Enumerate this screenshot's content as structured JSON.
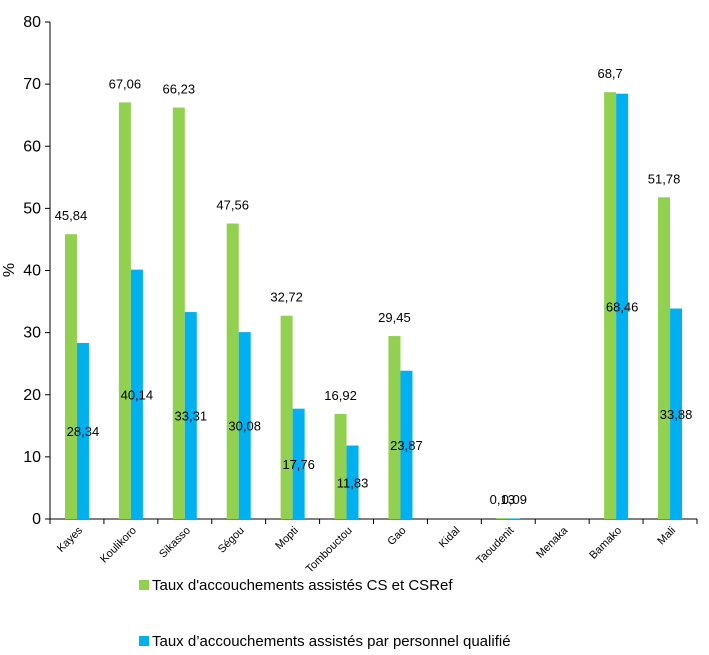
{
  "chart_data": {
    "type": "bar",
    "ylabel": "%",
    "ylim": [
      0,
      80
    ],
    "yticks": [
      0,
      10,
      20,
      30,
      40,
      50,
      60,
      70,
      80
    ],
    "grid": false,
    "legend_position": "bottom",
    "categories": [
      "Kayes",
      "Koulikoro",
      "Sikasso",
      "Ségou",
      "Mopti",
      "Tombouctou",
      "Gao",
      "Kidal",
      "Taoudenit",
      "Menaka",
      "Bamako",
      "Mali"
    ],
    "series": [
      {
        "name": "Taux d'accouchements assistés CS et CSRef",
        "color": "#92D050",
        "values": [
          45.84,
          67.06,
          66.23,
          47.56,
          32.72,
          16.92,
          29.45,
          null,
          0.13,
          null,
          68.7,
          51.78
        ],
        "labels": [
          "45,84",
          "67,06",
          "66,23",
          "47,56",
          "32,72",
          "16,92",
          "29,45",
          "",
          "0,13",
          "",
          "68,7",
          "51,78"
        ]
      },
      {
        "name": "Taux d’accouchements assistés par personnel qualifié",
        "color": "#00B0F0",
        "values": [
          28.34,
          40.14,
          33.31,
          30.08,
          17.76,
          11.83,
          23.87,
          null,
          0.09,
          null,
          68.46,
          33.88
        ],
        "labels": [
          "28,34",
          "40,14",
          "33,31",
          "30,08",
          "17,76",
          "11,83",
          "23,87",
          "",
          "0,09",
          "",
          "68,46",
          "33,88"
        ]
      }
    ]
  }
}
